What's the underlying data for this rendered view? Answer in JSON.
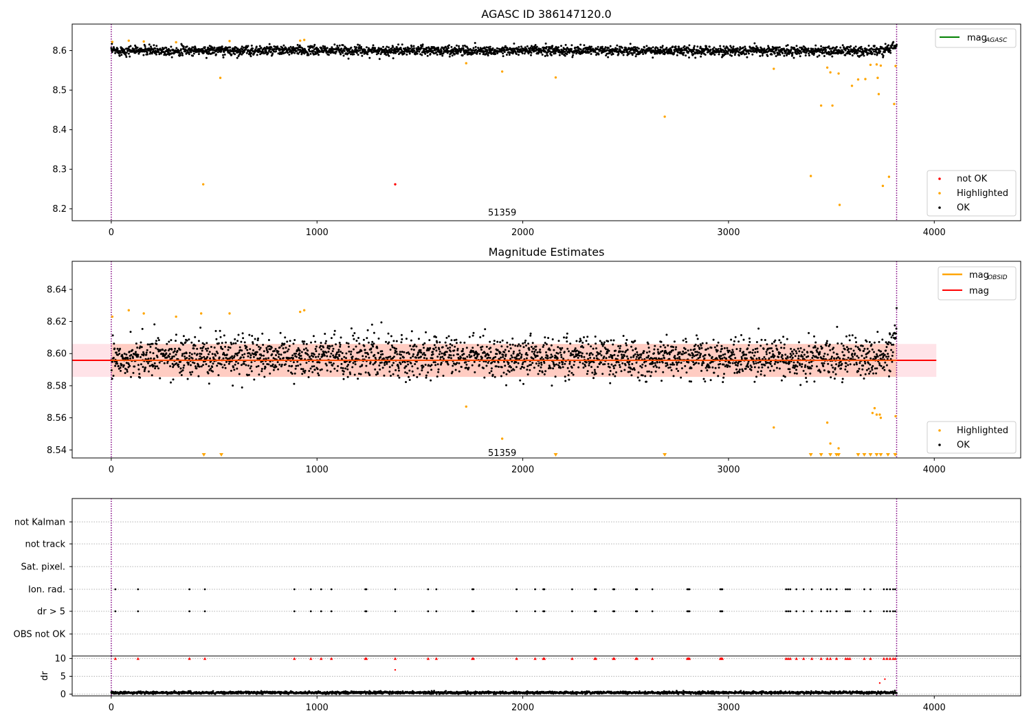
{
  "chart_data": [
    {
      "type": "scatter",
      "title": "AGASC ID 386147120.0",
      "xlim": [
        -190,
        4420
      ],
      "ylim": [
        8.17,
        8.667
      ],
      "xticks": [
        0,
        1000,
        2000,
        3000,
        4000
      ],
      "yticks": [
        8.2,
        8.3,
        8.4,
        8.5,
        8.6
      ],
      "obsid_annotation": {
        "text": "51359",
        "x": 1900,
        "y": 8.19
      },
      "vlines": [
        {
          "x": 0,
          "color": "#800080"
        },
        {
          "x": 3817,
          "color": "#800080"
        }
      ],
      "legend_lines": {
        "label": "mag",
        "subscript": "AGASC",
        "color": "#008000"
      },
      "legend_points": [
        {
          "label": "not OK",
          "color": "#ff0000"
        },
        {
          "label": "Highlighted",
          "color": "#ffa500"
        },
        {
          "label": "OK",
          "color": "#000000"
        }
      ],
      "ok_band": {
        "x_range": [
          0,
          3817
        ],
        "center": 8.6,
        "spread": 0.011,
        "end_rise": 8.615
      },
      "highlighted_points": [
        [
          5,
          8.622
        ],
        [
          85,
          8.625
        ],
        [
          158,
          8.623
        ],
        [
          315,
          8.621
        ],
        [
          447,
          8.262
        ],
        [
          530,
          8.531
        ],
        [
          575,
          8.624
        ],
        [
          918,
          8.625
        ],
        [
          938,
          8.627
        ],
        [
          1725,
          8.568
        ],
        [
          1900,
          8.547
        ],
        [
          2160,
          8.532
        ],
        [
          2690,
          8.433
        ],
        [
          3220,
          8.554
        ],
        [
          3400,
          8.283
        ],
        [
          3450,
          8.461
        ],
        [
          3480,
          8.557
        ],
        [
          3495,
          8.545
        ],
        [
          3505,
          8.461
        ],
        [
          3535,
          8.542
        ],
        [
          3540,
          8.21
        ],
        [
          3600,
          8.511
        ],
        [
          3630,
          8.527
        ],
        [
          3665,
          8.528
        ],
        [
          3690,
          8.564
        ],
        [
          3720,
          8.565
        ],
        [
          3725,
          8.531
        ],
        [
          3730,
          8.49
        ],
        [
          3740,
          8.562
        ],
        [
          3750,
          8.258
        ],
        [
          3780,
          8.281
        ],
        [
          3805,
          8.465
        ],
        [
          3812,
          8.561
        ]
      ],
      "not_ok_points": [
        [
          1380,
          8.262
        ]
      ]
    },
    {
      "type": "scatter",
      "title": "Magnitude Estimates",
      "xlim": [
        -190,
        4420
      ],
      "ylim": [
        8.535,
        8.6575
      ],
      "xticks": [
        0,
        1000,
        2000,
        3000,
        4000
      ],
      "yticks": [
        8.54,
        8.56,
        8.58,
        8.6,
        8.62,
        8.64
      ],
      "obsid_annotation": {
        "text": "51359",
        "x": 1900,
        "y": 8.538
      },
      "vlines": [
        {
          "x": 0,
          "color": "#800080"
        },
        {
          "x": 3817,
          "color": "#800080"
        }
      ],
      "mag_line": {
        "value": 8.5958,
        "x_range": [
          -190,
          4010
        ],
        "color": "#ff0000"
      },
      "mag_band": {
        "low": 8.5855,
        "high": 8.606,
        "x_range": [
          -190,
          4010
        ],
        "color": "#ffc0cb"
      },
      "obsid_band": {
        "low": 8.5855,
        "high": 8.606,
        "x_range": [
          0,
          3817
        ],
        "color": "#ffa07a"
      },
      "legend_lines": [
        {
          "label": "mag",
          "subscript": "OBSID",
          "color": "#ffa500"
        },
        {
          "label": "mag",
          "subscript": "",
          "color": "#ff0000"
        }
      ],
      "legend_points": [
        {
          "label": "Highlighted",
          "color": "#ffa500"
        },
        {
          "label": "OK",
          "color": "#000000"
        }
      ],
      "ok_band": {
        "x_range": [
          0,
          3817
        ],
        "center": 8.598,
        "spread": 0.011,
        "end_rise": 8.612
      },
      "highlighted_points": [
        [
          5,
          8.623
        ],
        [
          85,
          8.627
        ],
        [
          158,
          8.625
        ],
        [
          315,
          8.623
        ],
        [
          437,
          8.625
        ],
        [
          575,
          8.625
        ],
        [
          918,
          8.626
        ],
        [
          938,
          8.627
        ],
        [
          1725,
          8.567
        ],
        [
          1900,
          8.547
        ],
        [
          3220,
          8.554
        ],
        [
          3480,
          8.557
        ],
        [
          3495,
          8.544
        ],
        [
          3535,
          8.541
        ],
        [
          3700,
          8.563
        ],
        [
          3710,
          8.566
        ],
        [
          3720,
          8.562
        ],
        [
          3735,
          8.562
        ],
        [
          3740,
          8.56
        ],
        [
          3812,
          8.561
        ]
      ],
      "clipped_markers_x": [
        450,
        535,
        2160,
        2690,
        3400,
        3450,
        3495,
        3525,
        3535,
        3630,
        3660,
        3690,
        3720,
        3740,
        3775,
        3810
      ]
    },
    {
      "type": "scatter",
      "title": "",
      "xlim": [
        -190,
        4420
      ],
      "xticks": [
        0,
        1000,
        2000,
        3000,
        4000
      ],
      "vlines": [
        {
          "x": 0,
          "color": "#800080"
        },
        {
          "x": 3817,
          "color": "#800080"
        }
      ],
      "flag_rows": [
        "not Kalman",
        "not track",
        "Sat. pixel.",
        "Ion. rad.",
        "dr > 5",
        "OBS not OK"
      ],
      "flag_events_x": [
        20,
        130,
        380,
        455,
        890,
        970,
        1020,
        1070,
        1235,
        1240,
        1380,
        1540,
        1580,
        1755,
        1760,
        1970,
        2060,
        2100,
        2105,
        2240,
        2350,
        2355,
        2440,
        2445,
        2550,
        2555,
        2630,
        2800,
        2805,
        2810,
        2960,
        2965,
        2970,
        3280,
        3290,
        3300,
        3330,
        3365,
        3405,
        3450,
        3480,
        3495,
        3525,
        3570,
        3580,
        3590,
        3660,
        3690,
        3755,
        3770,
        3785,
        3800,
        3810
      ],
      "dr_ylabel": "dr",
      "dr_ylim": [
        -0.5,
        10.7
      ],
      "dr_yticks": [
        0,
        5,
        10
      ],
      "dr_clipped_y": 10,
      "dr_outliers": [
        [
          1380,
          6.8
        ],
        [
          3735,
          3.1
        ],
        [
          3760,
          4.2
        ]
      ],
      "dr_baseline": {
        "x_range": [
          0,
          3817
        ],
        "center": 0.4,
        "spread": 0.35
      }
    }
  ]
}
